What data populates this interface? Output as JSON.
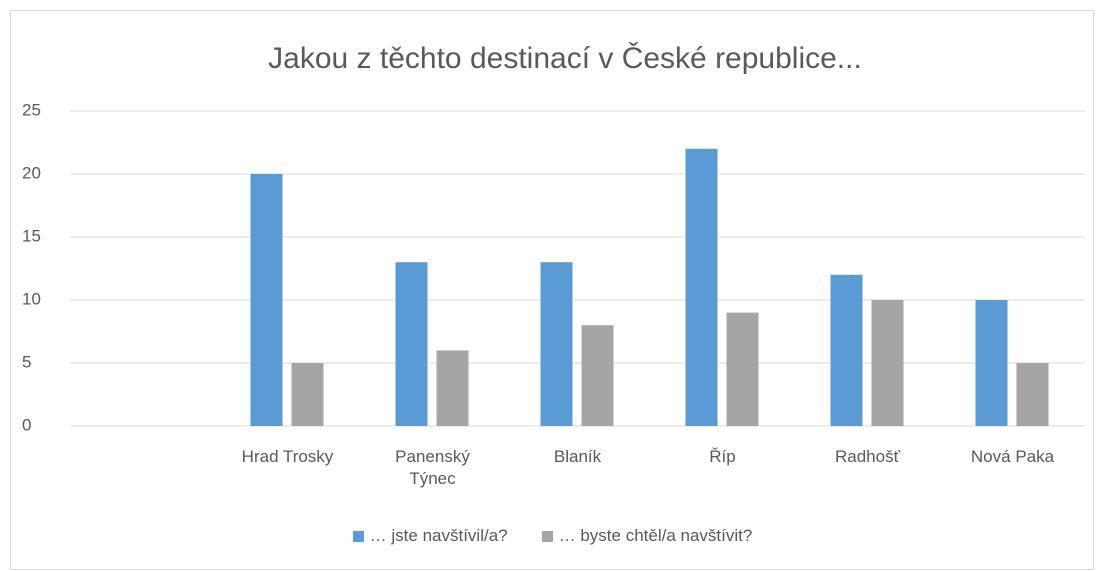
{
  "chart_data": {
    "type": "bar",
    "title": "Jakou z těchto destinací v České republice...",
    "categories": [
      null,
      "Hrad Trosky",
      "Panenský Týnec",
      "Blaník",
      "Říp",
      "Radhošť",
      "Nová Paka"
    ],
    "series": [
      {
        "name": "… jste navštívil/a?",
        "color": "#5b9bd5",
        "values": [
          null,
          20,
          13,
          13,
          22,
          12,
          10
        ]
      },
      {
        "name": "… byste chtěl/a navštívit?",
        "color": "#a5a5a5",
        "values": [
          null,
          5,
          6,
          8,
          9,
          10,
          5
        ]
      }
    ],
    "ylim": [
      0,
      25
    ],
    "yticks": [
      0,
      5,
      10,
      15,
      20,
      25
    ],
    "grid": true,
    "legend": "bottom"
  }
}
